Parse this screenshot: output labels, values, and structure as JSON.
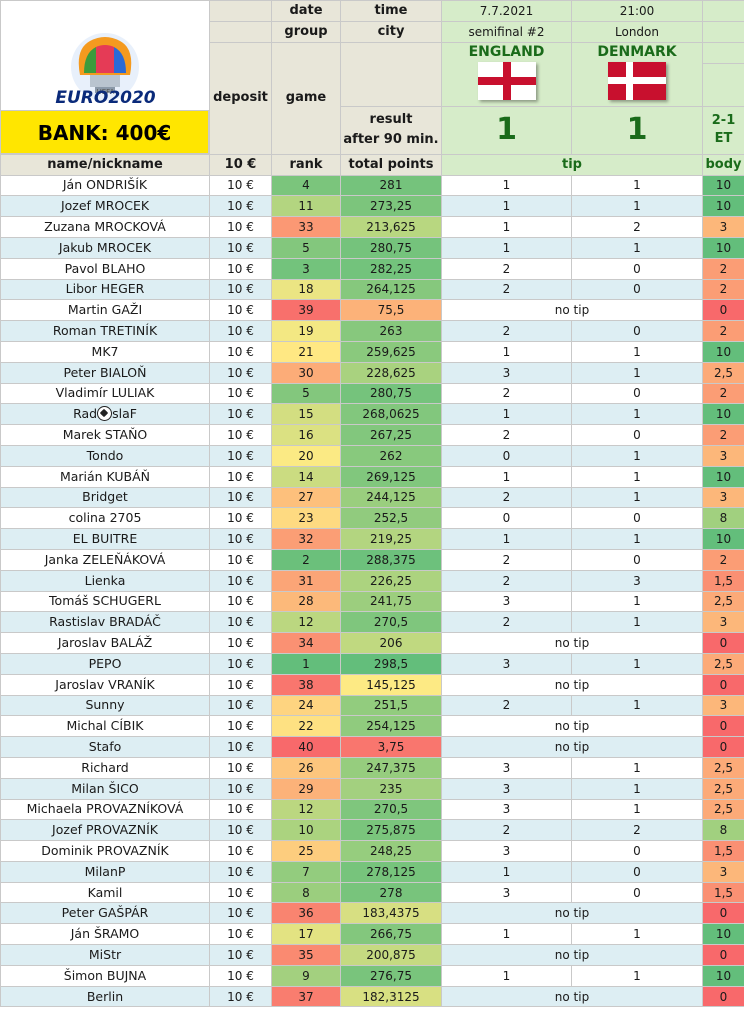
{
  "header": {
    "date_label": "date",
    "time_label": "time",
    "date": "7.7.2021",
    "time": "21:00",
    "group_label": "group",
    "city_label": "city",
    "stage": "semifinal #2",
    "city": "London",
    "deposit_label": "deposit",
    "game_label": "game",
    "home_team": "ENGLAND",
    "away_team": "DENMARK",
    "result_label_1": "result",
    "result_label_2": "after 90 min.",
    "home_score": "1",
    "away_score": "1",
    "extra_1": "2-1",
    "extra_2": "ET",
    "bank": "BANK: 400€",
    "logo_small": "UEFA",
    "logo_text": "EURO2020"
  },
  "columns": {
    "name": "name/nickname",
    "deposit": "10 €",
    "rank": "rank",
    "points": "total points",
    "tip": "tip",
    "body": "body"
  },
  "colors": {
    "rank_best": "#63be7b",
    "rank_mid": "#ffeb84",
    "rank_worst": "#f8696b"
  },
  "rows": [
    {
      "name": "Ján ONDRIŠÍK",
      "deposit": "10 €",
      "rank": "4",
      "points": "281",
      "tip1": "1",
      "tip2": "1",
      "notip": "",
      "body": "10"
    },
    {
      "name": "Jozef MROCEK",
      "deposit": "10 €",
      "rank": "11",
      "points": "273,25",
      "tip1": "1",
      "tip2": "1",
      "notip": "",
      "body": "10"
    },
    {
      "name": "Zuzana MROCKOVÁ",
      "deposit": "10 €",
      "rank": "33",
      "points": "213,625",
      "tip1": "1",
      "tip2": "2",
      "notip": "",
      "body": "3"
    },
    {
      "name": "Jakub MROCEK",
      "deposit": "10 €",
      "rank": "5",
      "points": "280,75",
      "tip1": "1",
      "tip2": "1",
      "notip": "",
      "body": "10"
    },
    {
      "name": "Pavol BLAHO",
      "deposit": "10 €",
      "rank": "3",
      "points": "282,25",
      "tip1": "2",
      "tip2": "0",
      "notip": "",
      "body": "2"
    },
    {
      "name": "Libor HEGER",
      "deposit": "10 €",
      "rank": "18",
      "points": "264,125",
      "tip1": "2",
      "tip2": "0",
      "notip": "",
      "body": "2"
    },
    {
      "name": "Martin GAŽI",
      "deposit": "10 €",
      "rank": "39",
      "points": "75,5",
      "tip1": "",
      "tip2": "",
      "notip": "no tip",
      "body": "0"
    },
    {
      "name": "Roman TRETINÍK",
      "deposit": "10 €",
      "rank": "19",
      "points": "263",
      "tip1": "2",
      "tip2": "0",
      "notip": "",
      "body": "2"
    },
    {
      "name": "MK7",
      "deposit": "10 €",
      "rank": "21",
      "points": "259,625",
      "tip1": "1",
      "tip2": "1",
      "notip": "",
      "body": "10"
    },
    {
      "name": "Peter BIALOŇ",
      "deposit": "10 €",
      "rank": "30",
      "points": "228,625",
      "tip1": "3",
      "tip2": "1",
      "notip": "",
      "body": "2,5"
    },
    {
      "name": "Vladimír LULIAK",
      "deposit": "10 €",
      "rank": "5",
      "points": "280,75",
      "tip1": "2",
      "tip2": "0",
      "notip": "",
      "body": "2"
    },
    {
      "name": "Rad",
      "name_suffix": "slaF",
      "ball": true,
      "deposit": "10 €",
      "rank": "15",
      "points": "268,0625",
      "tip1": "1",
      "tip2": "1",
      "notip": "",
      "body": "10"
    },
    {
      "name": "Marek STAŇO",
      "deposit": "10 €",
      "rank": "16",
      "points": "267,25",
      "tip1": "2",
      "tip2": "0",
      "notip": "",
      "body": "2"
    },
    {
      "name": "Tondo",
      "deposit": "10 €",
      "rank": "20",
      "points": "262",
      "tip1": "0",
      "tip2": "1",
      "notip": "",
      "body": "3"
    },
    {
      "name": "Marián KUBÁŇ",
      "deposit": "10 €",
      "rank": "14",
      "points": "269,125",
      "tip1": "1",
      "tip2": "1",
      "notip": "",
      "body": "10"
    },
    {
      "name": "Bridget",
      "deposit": "10 €",
      "rank": "27",
      "points": "244,125",
      "tip1": "2",
      "tip2": "1",
      "notip": "",
      "body": "3"
    },
    {
      "name": "colina 2705",
      "deposit": "10 €",
      "rank": "23",
      "points": "252,5",
      "tip1": "0",
      "tip2": "0",
      "notip": "",
      "body": "8"
    },
    {
      "name": "EL BUITRE",
      "deposit": "10 €",
      "rank": "32",
      "points": "219,25",
      "tip1": "1",
      "tip2": "1",
      "notip": "",
      "body": "10"
    },
    {
      "name": "Janka ZELEŇÁKOVÁ",
      "deposit": "10 €",
      "rank": "2",
      "points": "288,375",
      "tip1": "2",
      "tip2": "0",
      "notip": "",
      "body": "2"
    },
    {
      "name": "Lienka",
      "deposit": "10 €",
      "rank": "31",
      "points": "226,25",
      "tip1": "2",
      "tip2": "3",
      "notip": "",
      "body": "1,5"
    },
    {
      "name": "Tomáš SCHUGERL",
      "deposit": "10 €",
      "rank": "28",
      "points": "241,75",
      "tip1": "3",
      "tip2": "1",
      "notip": "",
      "body": "2,5"
    },
    {
      "name": "Rastislav BRADÁČ",
      "deposit": "10 €",
      "rank": "12",
      "points": "270,5",
      "tip1": "2",
      "tip2": "1",
      "notip": "",
      "body": "3"
    },
    {
      "name": "Jaroslav BALÁŽ",
      "deposit": "10 €",
      "rank": "34",
      "points": "206",
      "tip1": "",
      "tip2": "",
      "notip": "no tip",
      "body": "0"
    },
    {
      "name": "PEPO",
      "deposit": "10 €",
      "rank": "1",
      "points": "298,5",
      "tip1": "3",
      "tip2": "1",
      "notip": "",
      "body": "2,5"
    },
    {
      "name": "Jaroslav VRANÍK",
      "deposit": "10 €",
      "rank": "38",
      "points": "145,125",
      "tip1": "",
      "tip2": "",
      "notip": "no tip",
      "body": "0"
    },
    {
      "name": "Sunny",
      "deposit": "10 €",
      "rank": "24",
      "points": "251,5",
      "tip1": "2",
      "tip2": "1",
      "notip": "",
      "body": "3"
    },
    {
      "name": "Michal CÍBIK",
      "deposit": "10 €",
      "rank": "22",
      "points": "254,125",
      "tip1": "",
      "tip2": "",
      "notip": "no tip",
      "body": "0"
    },
    {
      "name": "Stafo",
      "deposit": "10 €",
      "rank": "40",
      "points": "3,75",
      "tip1": "",
      "tip2": "",
      "notip": "no tip",
      "body": "0"
    },
    {
      "name": "Richard",
      "deposit": "10 €",
      "rank": "26",
      "points": "247,375",
      "tip1": "3",
      "tip2": "1",
      "notip": "",
      "body": "2,5"
    },
    {
      "name": "Milan ŠICO",
      "deposit": "10 €",
      "rank": "29",
      "points": "235",
      "tip1": "3",
      "tip2": "1",
      "notip": "",
      "body": "2,5"
    },
    {
      "name": "Michaela PROVAZNÍKOVÁ",
      "deposit": "10 €",
      "rank": "12",
      "points": "270,5",
      "tip1": "3",
      "tip2": "1",
      "notip": "",
      "body": "2,5"
    },
    {
      "name": "Jozef PROVAZNÍK",
      "deposit": "10 €",
      "rank": "10",
      "points": "275,875",
      "tip1": "2",
      "tip2": "2",
      "notip": "",
      "body": "8"
    },
    {
      "name": "Dominik PROVAZNÍK",
      "deposit": "10 €",
      "rank": "25",
      "points": "248,25",
      "tip1": "3",
      "tip2": "0",
      "notip": "",
      "body": "1,5"
    },
    {
      "name": "MilanP",
      "deposit": "10 €",
      "rank": "7",
      "points": "278,125",
      "tip1": "1",
      "tip2": "0",
      "notip": "",
      "body": "3"
    },
    {
      "name": "Kamil",
      "deposit": "10 €",
      "rank": "8",
      "points": "278",
      "tip1": "3",
      "tip2": "0",
      "notip": "",
      "body": "1,5"
    },
    {
      "name": "Peter GAŠPÁR",
      "deposit": "10 €",
      "rank": "36",
      "points": "183,4375",
      "tip1": "",
      "tip2": "",
      "notip": "no tip",
      "body": "0"
    },
    {
      "name": "Ján ŠRAMO",
      "deposit": "10 €",
      "rank": "17",
      "points": "266,75",
      "tip1": "1",
      "tip2": "1",
      "notip": "",
      "body": "10"
    },
    {
      "name": "MiStr",
      "deposit": "10 €",
      "rank": "35",
      "points": "200,875",
      "tip1": "",
      "tip2": "",
      "notip": "no tip",
      "body": "0"
    },
    {
      "name": "Šimon BUJNA",
      "deposit": "10 €",
      "rank": "9",
      "points": "276,75",
      "tip1": "1",
      "tip2": "1",
      "notip": "",
      "body": "10"
    },
    {
      "name": "Berlin",
      "deposit": "10 €",
      "rank": "37",
      "points": "182,3125",
      "tip1": "",
      "tip2": "",
      "notip": "no tip",
      "body": "0"
    }
  ]
}
